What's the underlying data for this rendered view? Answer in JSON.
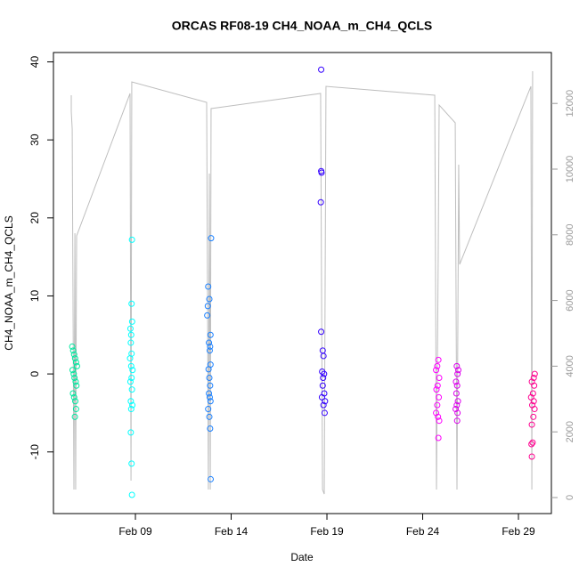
{
  "chart_data": {
    "type": "scatter",
    "title": "ORCAS RF08-19 CH4_NOAA_m_CH4_QCLS",
    "xlabel": "Date",
    "ylabel": "CH4_NOAA_m_CH4_QCLS",
    "xlim": [
      4.72,
      30.72
    ],
    "xticks": [
      {
        "value": 9,
        "label": "Feb 09"
      },
      {
        "value": 14,
        "label": "Feb 14"
      },
      {
        "value": 19,
        "label": "Feb 19"
      },
      {
        "value": 24,
        "label": "Feb 24"
      },
      {
        "value": 29,
        "label": "Feb 29"
      }
    ],
    "ylim": [
      -17.9,
      41.2
    ],
    "yticks": [
      -10,
      0,
      10,
      20,
      30,
      40
    ],
    "y2lim": [
      -488,
      13550
    ],
    "y2ticks": [
      0,
      2000,
      4000,
      6000,
      8000,
      10000,
      12000
    ],
    "series": [
      {
        "color": "#00e8a0",
        "x": [
          5.7,
          5.75,
          5.8,
          5.85,
          5.9,
          5.95,
          5.72,
          5.78,
          5.82,
          5.88,
          5.92,
          5.74,
          5.8,
          5.86,
          5.9,
          5.84
        ],
        "values": [
          3.5,
          3,
          2.5,
          2,
          1.5,
          1,
          0.5,
          0,
          -0.5,
          -1,
          -1.5,
          -2.5,
          -3,
          -3.5,
          -4.5,
          -5.5
        ]
      },
      {
        "color": "#00ffff",
        "x": [
          8.82,
          8.8,
          8.83,
          8.74,
          8.78,
          8.76,
          8.8,
          8.72,
          8.78,
          8.85,
          8.8,
          8.74,
          8.82,
          8.76,
          8.84,
          8.78,
          8.76,
          8.8,
          8.82
        ],
        "values": [
          17.2,
          9,
          6.7,
          5.8,
          5,
          4,
          2.6,
          2,
          1,
          0.5,
          -0.5,
          -1,
          -2,
          -3.5,
          -4,
          -4.5,
          -7.5,
          -11.5,
          -15.5
        ]
      },
      {
        "color": "#1a80ff",
        "x": [
          12.95,
          12.8,
          12.86,
          12.78,
          12.75,
          12.92,
          12.84,
          12.9,
          12.88,
          12.92,
          12.82,
          12.86,
          12.9,
          12.84,
          12.88,
          12.92,
          12.8,
          12.86,
          12.9,
          12.93
        ],
        "values": [
          17.4,
          11.2,
          9.6,
          8.7,
          7.5,
          5,
          4,
          3.5,
          3,
          1.2,
          0.6,
          -0.5,
          -1.5,
          -2.5,
          -3,
          -3.5,
          -4.5,
          -5.5,
          -7,
          -13.5
        ]
      },
      {
        "color": "#3300ff",
        "x": [
          18.7,
          18.7,
          18.72,
          18.68,
          18.7,
          18.78,
          18.82,
          18.75,
          18.85,
          18.8,
          18.78,
          18.86,
          18.74,
          18.9,
          18.82,
          18.88
        ],
        "values": [
          39,
          26,
          25.8,
          22,
          5.4,
          3,
          2.3,
          0.3,
          0,
          -0.5,
          -1.5,
          -2.5,
          -3,
          -3.5,
          -4,
          -5
        ]
      },
      {
        "color": "#ff00ff",
        "x": [
          24.82,
          24.76,
          24.7,
          24.86,
          24.78,
          24.72,
          24.84,
          24.76,
          24.7,
          24.8,
          24.86,
          24.82
        ],
        "values": [
          1.8,
          1,
          0.5,
          -0.5,
          -1.5,
          -2,
          -3,
          -4,
          -5,
          -5.5,
          -6,
          -8.2
        ]
      },
      {
        "color": "#dd00ee",
        "x": [
          25.78,
          25.86,
          25.82,
          25.74,
          25.8,
          25.76,
          25.84,
          25.78,
          25.72,
          25.82,
          25.8
        ],
        "values": [
          1,
          0.5,
          0,
          -1,
          -1.5,
          -2.5,
          -3.5,
          -4,
          -4.5,
          -5,
          -6
        ]
      },
      {
        "color": "#ff0090",
        "x": [
          29.85,
          29.8,
          29.7,
          29.82,
          29.76,
          29.66,
          29.8,
          29.72,
          29.84,
          29.78,
          29.7,
          29.74,
          29.68,
          29.7
        ],
        "values": [
          0,
          -0.5,
          -1,
          -1.5,
          -2.5,
          -3,
          -3.5,
          -4,
          -4.5,
          -5.5,
          -6.5,
          -8.8,
          -9,
          -10.6
        ]
      },
      {
        "type": "line",
        "axis": "y2",
        "color": "#bebebe",
        "x": [
          5.65,
          5.65,
          5.7,
          5.79,
          5.84,
          5.88,
          5.93,
          8.72,
          8.77,
          8.81,
          12.72,
          12.81,
          12.86,
          12.91,
          12.95,
          18.67,
          18.77,
          18.86,
          18.95,
          24.63,
          24.72,
          24.81,
          24.86,
          25.7,
          25.79,
          25.88,
          25.93,
          29.65,
          29.7,
          29.74
        ],
        "values": [
          12249,
          11762,
          11220,
          244,
          8049,
          244,
          7967,
          12304,
          515,
          12656,
          12033,
          244,
          9864,
          244,
          11843,
          12304,
          244,
          108,
          12520,
          12249,
          244,
          7290,
          11951,
          11409,
          244,
          10136,
          7100,
          12520,
          244,
          12981
        ]
      }
    ]
  }
}
